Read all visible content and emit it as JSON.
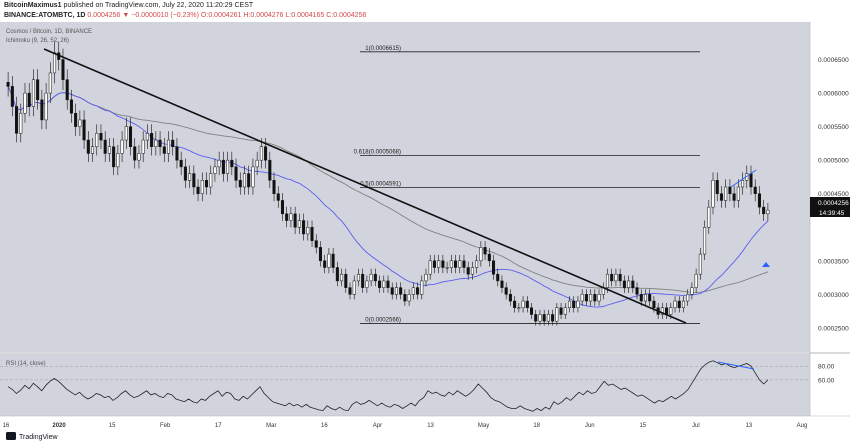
{
  "header": {
    "line1_user": "BitcoinMaximus1",
    "line1_rest": "published on TradingView.com, July 22, 2020 11:20:29 CEST",
    "line2_symbol": "BINANCE:ATOMBTC, 1D",
    "line2_values": "0.0004256 ▼ −0.0000010 (−0.23%) O:0.0004261 H:0.0004276 L:0.0004165 C:0.0004256"
  },
  "chart_data": {
    "type": "candlestick",
    "title": "Cosmos / Bitcoin, 1D, BINANCE",
    "indicator_label": "Ichimoku (9, 26, 52, 26)",
    "y_axis": {
      "min": 0.00022,
      "max": 0.0007,
      "ticks": [
        "0.0006500",
        "0.0006000",
        "0.0005500",
        "0.0005000",
        "0.0004500",
        "0.0004256",
        "0.0003500",
        "0.0003000",
        "0.0002500"
      ],
      "tick_values": [
        0.00065,
        0.0006,
        0.00055,
        0.0005,
        0.00045,
        0.0004256,
        0.00035,
        0.0003,
        0.00025
      ],
      "last_price_label": "0.0004256",
      "countdown_label": "14:39:45"
    },
    "x_axis": {
      "ticks": [
        "16",
        "2020",
        "15",
        "Feb",
        "17",
        "Mar",
        "16",
        "Apr",
        "13",
        "May",
        "18",
        "Jun",
        "15",
        "Jul",
        "13",
        "Aug"
      ]
    },
    "fibonacci": [
      {
        "label": "1(0.0006615)",
        "value": 0.0006615
      },
      {
        "label": "0.618(0.0005068)",
        "value": 0.0005068
      },
      {
        "label": "0.5(0.0004591)",
        "value": 0.0004591
      },
      {
        "label": "0(0.0002566)",
        "value": 0.0002566
      }
    ],
    "closes": [
      0.00061,
      0.00058,
      0.00054,
      0.00057,
      0.0006,
      0.00058,
      0.00062,
      0.00059,
      0.00056,
      0.0006,
      0.00063,
      0.00066,
      0.00065,
      0.00062,
      0.00059,
      0.00057,
      0.00055,
      0.00056,
      0.00053,
      0.00051,
      0.00052,
      0.00054,
      0.00053,
      0.00051,
      0.00052,
      0.00049,
      0.00051,
      0.00053,
      0.00055,
      0.00052,
      0.0005,
      0.00051,
      0.00053,
      0.00054,
      0.00052,
      0.00053,
      0.00052,
      0.00051,
      0.00053,
      0.00052,
      0.0005,
      0.00049,
      0.00047,
      0.00048,
      0.00046,
      0.00045,
      0.00047,
      0.00046,
      0.00048,
      0.00049,
      0.0005,
      0.00048,
      0.0005,
      0.00049,
      0.00047,
      0.00046,
      0.00048,
      0.00046,
      0.00049,
      0.0005,
      0.00052,
      0.0005,
      0.00047,
      0.00045,
      0.00044,
      0.00042,
      0.00041,
      0.00042,
      0.0004,
      0.00041,
      0.00039,
      0.0004,
      0.00038,
      0.00037,
      0.00035,
      0.00034,
      0.00036,
      0.00034,
      0.00032,
      0.00033,
      0.00031,
      0.0003,
      0.00032,
      0.00033,
      0.00031,
      0.00032,
      0.00033,
      0.00032,
      0.00031,
      0.00032,
      0.00031,
      0.0003,
      0.00031,
      0.0003,
      0.00029,
      0.0003,
      0.00031,
      0.0003,
      0.00032,
      0.00033,
      0.00035,
      0.00034,
      0.00035,
      0.00034,
      0.00034,
      0.00035,
      0.00034,
      0.00035,
      0.00034,
      0.00033,
      0.00034,
      0.00035,
      0.00037,
      0.00036,
      0.00035,
      0.00033,
      0.00032,
      0.00031,
      0.0003,
      0.00029,
      0.00028,
      0.00028,
      0.00029,
      0.00028,
      0.00027,
      0.00026,
      0.00027,
      0.00026,
      0.00027,
      0.00026,
      0.00028,
      0.00027,
      0.00028,
      0.00029,
      0.00028,
      0.00029,
      0.0003,
      0.00029,
      0.0003,
      0.00029,
      0.0003,
      0.00031,
      0.00033,
      0.00032,
      0.00033,
      0.00032,
      0.00031,
      0.00032,
      0.00031,
      0.0003,
      0.00029,
      0.0003,
      0.00029,
      0.00028,
      0.00027,
      0.00028,
      0.00027,
      0.00028,
      0.00029,
      0.00028,
      0.00029,
      0.0003,
      0.00031,
      0.00033,
      0.00036,
      0.0004,
      0.00043,
      0.00047,
      0.00045,
      0.00044,
      0.00046,
      0.00045,
      0.00044,
      0.00046,
      0.00047,
      0.00048,
      0.00046,
      0.00045,
      0.00043,
      0.00042,
      0.0004256
    ],
    "rsi": {
      "label": "RSI (14, close)",
      "ticks": [
        "80.00",
        "60.00"
      ],
      "tick_values": [
        80,
        60
      ],
      "values": [
        50,
        46,
        40,
        45,
        52,
        47,
        55,
        50,
        44,
        52,
        58,
        62,
        58,
        52,
        46,
        42,
        38,
        42,
        36,
        32,
        35,
        40,
        38,
        34,
        36,
        30,
        34,
        40,
        44,
        38,
        34,
        36,
        40,
        44,
        38,
        40,
        36,
        34,
        40,
        38,
        32,
        30,
        28,
        32,
        28,
        26,
        32,
        30,
        36,
        40,
        44,
        36,
        42,
        40,
        32,
        30,
        36,
        32,
        38,
        44,
        50,
        40,
        34,
        28,
        26,
        24,
        22,
        26,
        22,
        24,
        20,
        24,
        20,
        18,
        16,
        15,
        22,
        18,
        16,
        20,
        16,
        15,
        24,
        28,
        24,
        26,
        30,
        26,
        22,
        26,
        22,
        20,
        24,
        22,
        18,
        22,
        26,
        22,
        30,
        34,
        44,
        40,
        42,
        38,
        36,
        42,
        38,
        44,
        40,
        36,
        40,
        46,
        54,
        48,
        42,
        34,
        30,
        28,
        24,
        20,
        18,
        18,
        22,
        18,
        16,
        14,
        18,
        15,
        20,
        17,
        28,
        24,
        28,
        34,
        30,
        36,
        42,
        38,
        44,
        40,
        42,
        50,
        58,
        52,
        54,
        50,
        46,
        48,
        44,
        40,
        36,
        38,
        34,
        30,
        26,
        30,
        28,
        32,
        36,
        32,
        36,
        40,
        46,
        56,
        66,
        76,
        82,
        86,
        88,
        85,
        82,
        84,
        80,
        78,
        80,
        82,
        84,
        80,
        70,
        60,
        54,
        60
      ]
    }
  },
  "logo": {
    "text": "TradingView"
  }
}
